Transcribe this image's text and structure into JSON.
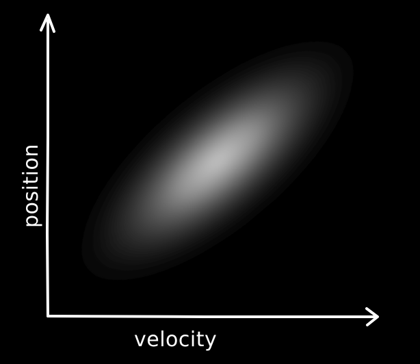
{
  "diagram": {
    "x_axis_label": "velocity",
    "y_axis_label": "position",
    "colors": {
      "background": "#000000",
      "axis": "#ffffff",
      "distribution": "#d8d8d8"
    },
    "distribution": {
      "shape": "elliptical-gaussian",
      "correlation": "positive"
    }
  }
}
